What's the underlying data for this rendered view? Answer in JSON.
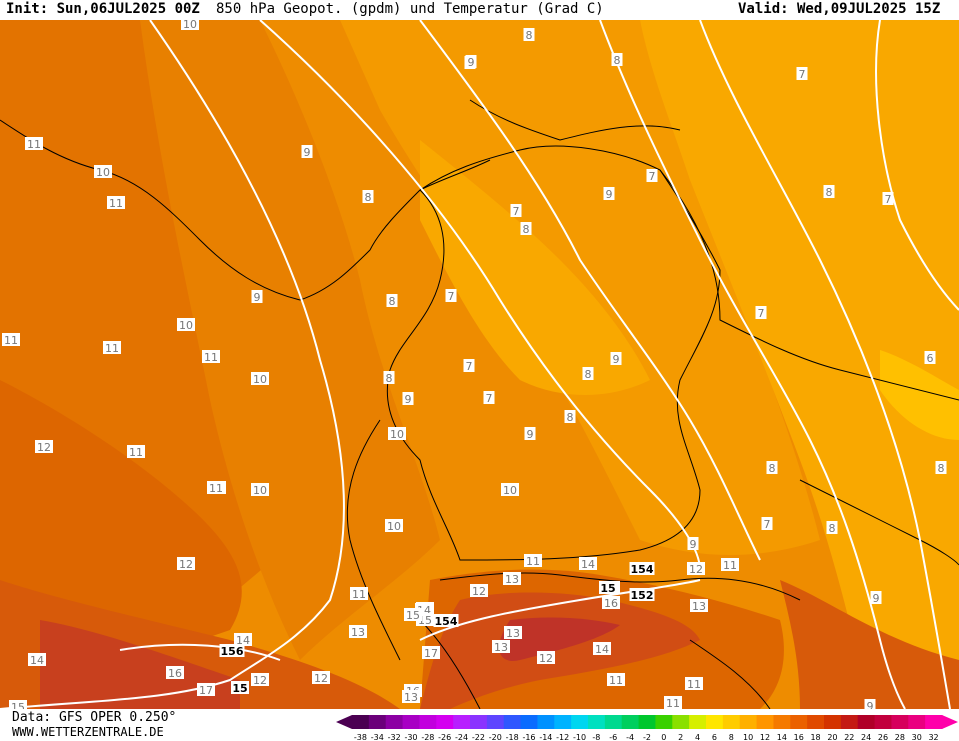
{
  "header": {
    "init": "Init: Sun,06JUL2025 00Z",
    "title": "850 hPa Geopot. (gpdm) und Temperatur (Grad C)",
    "valid": "Valid: Wed,09JUL2025 15Z"
  },
  "footer": {
    "data_source": "Data: GFS OPER 0.250°",
    "website": "WWW.WETTERZENTRALE.DE"
  },
  "colorbar": {
    "ticks": [
      "-38",
      "-34",
      "-32",
      "-30",
      "-28",
      "-26",
      "-24",
      "-22",
      "-20",
      "-18",
      "-16",
      "-14",
      "-12",
      "-10",
      "-8",
      "-6",
      "-4",
      "-2",
      "0",
      "2",
      "4",
      "6",
      "8",
      "10",
      "12",
      "14",
      "16",
      "18",
      "20",
      "22",
      "24",
      "26",
      "28",
      "30",
      "32"
    ],
    "colors": [
      "#4b0052",
      "#6b007a",
      "#8c00a3",
      "#a800c4",
      "#c200de",
      "#d400f0",
      "#b81fff",
      "#8a33ff",
      "#5e45ff",
      "#2f57ff",
      "#0a6cff",
      "#0091ff",
      "#00b3ff",
      "#00d6f0",
      "#00e0c0",
      "#00d98f",
      "#00cf5e",
      "#00c72e",
      "#3ad100",
      "#8ae000",
      "#d6ef00",
      "#ffe600",
      "#ffcc00",
      "#ffb000",
      "#ff9500",
      "#f57a00",
      "#eb6100",
      "#e04a00",
      "#d43300",
      "#c41a14",
      "#b00028",
      "#c2003d",
      "#d6005c",
      "#ea0080",
      "#ff00aa"
    ]
  },
  "map_legend": {
    "temperature_colors": {
      "t6": "#ffc000",
      "t7": "#f9a800",
      "t8": "#f49a00",
      "t9": "#ee8c00",
      "t10": "#e88000",
      "t11": "#e37300",
      "t12": "#dd6600",
      "t13": "#d75a0a",
      "t14": "#d14d14",
      "t15": "#c8401e",
      "t16": "#bf3328"
    },
    "geopotential_color": "#ffffff",
    "border_color": "#000000"
  },
  "labels": {
    "isotherm": [
      {
        "text": "10"
      },
      {
        "text": "11"
      },
      {
        "text": "10"
      },
      {
        "text": "11"
      },
      {
        "text": "9"
      },
      {
        "text": "8"
      },
      {
        "text": "8"
      },
      {
        "text": "7"
      },
      {
        "text": "8"
      },
      {
        "text": "7"
      },
      {
        "text": "8"
      },
      {
        "text": "9"
      },
      {
        "text": "8"
      },
      {
        "text": "7"
      },
      {
        "text": "7"
      },
      {
        "text": "8"
      },
      {
        "text": "9"
      },
      {
        "text": "7"
      },
      {
        "text": "11"
      },
      {
        "text": "10"
      },
      {
        "text": "11"
      },
      {
        "text": "10"
      },
      {
        "text": "8"
      },
      {
        "text": "11"
      },
      {
        "text": "9"
      },
      {
        "text": "7"
      },
      {
        "text": "8"
      },
      {
        "text": "9"
      },
      {
        "text": "7"
      },
      {
        "text": "8"
      },
      {
        "text": "6"
      },
      {
        "text": "12"
      },
      {
        "text": "11"
      },
      {
        "text": "10"
      },
      {
        "text": "9"
      },
      {
        "text": "8"
      },
      {
        "text": "7"
      },
      {
        "text": "7"
      },
      {
        "text": "8"
      },
      {
        "text": "8"
      },
      {
        "text": "11"
      },
      {
        "text": "10"
      },
      {
        "text": "10"
      },
      {
        "text": "12"
      },
      {
        "text": "11"
      },
      {
        "text": "13"
      },
      {
        "text": "12"
      },
      {
        "text": "14"
      },
      {
        "text": "11"
      },
      {
        "text": "13"
      },
      {
        "text": "14"
      },
      {
        "text": "15"
      },
      {
        "text": "16"
      },
      {
        "text": "13"
      },
      {
        "text": "13"
      },
      {
        "text": "14"
      },
      {
        "text": "16"
      },
      {
        "text": "14"
      },
      {
        "text": "12"
      },
      {
        "text": "14"
      },
      {
        "text": "17"
      },
      {
        "text": "12"
      },
      {
        "text": "15"
      },
      {
        "text": "16"
      },
      {
        "text": "11"
      },
      {
        "text": "11"
      },
      {
        "text": "11"
      },
      {
        "text": "13"
      },
      {
        "text": "9"
      },
      {
        "text": "12"
      },
      {
        "text": "11"
      },
      {
        "text": "8"
      },
      {
        "text": "9"
      },
      {
        "text": "17"
      },
      {
        "text": "14"
      },
      {
        "text": "15"
      },
      {
        "text": "12"
      },
      {
        "text": "10"
      },
      {
        "text": "9"
      },
      {
        "text": "11"
      },
      {
        "text": "9"
      },
      {
        "text": "13"
      },
      {
        "text": "15"
      }
    ],
    "geopotential": [
      {
        "text": "154"
      },
      {
        "text": "152"
      },
      {
        "text": "154"
      },
      {
        "text": "156"
      },
      {
        "text": "15"
      },
      {
        "text": "15"
      }
    ]
  }
}
